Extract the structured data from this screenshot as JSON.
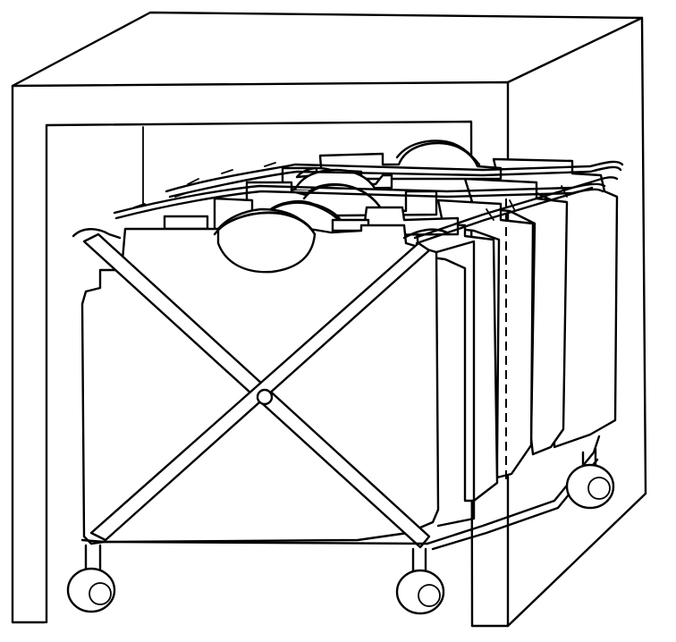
{
  "colors": {
    "line": "#000000",
    "background": "#ffffff"
  }
}
